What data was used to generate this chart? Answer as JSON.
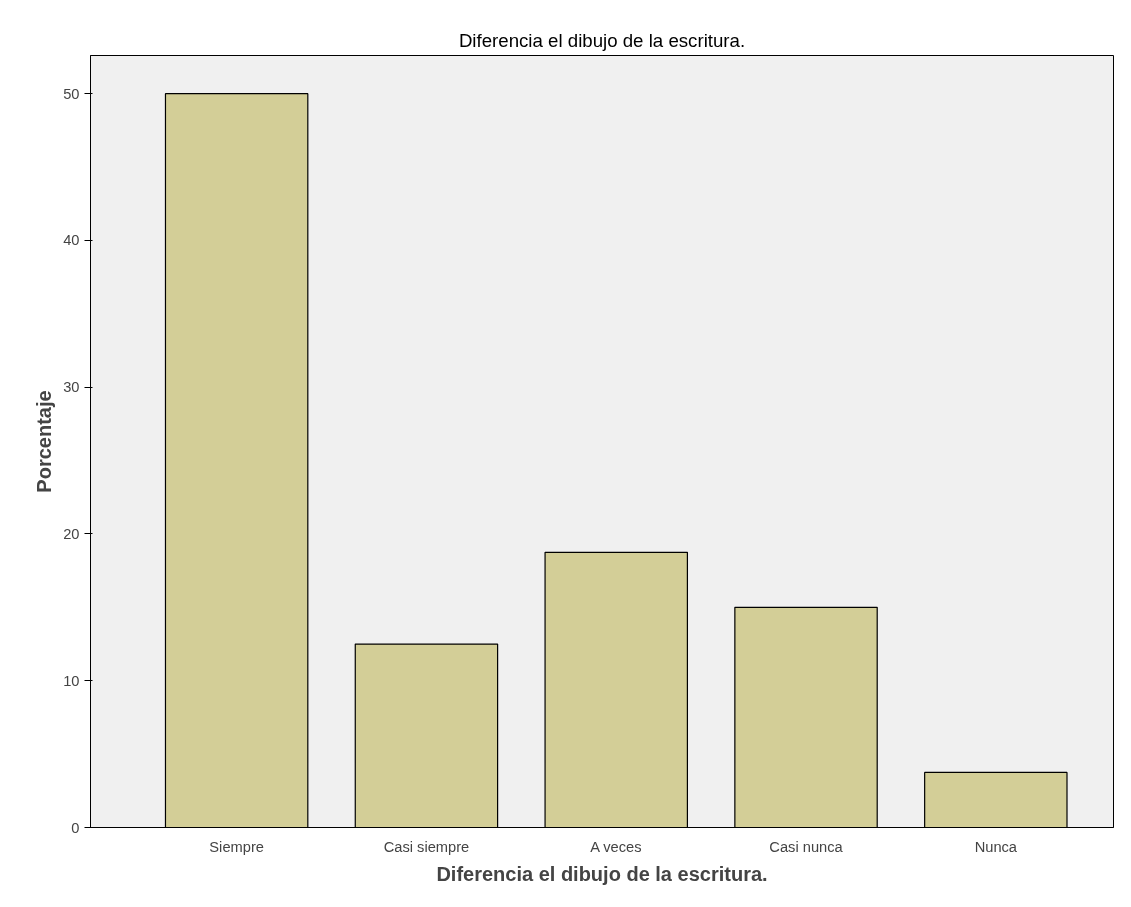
{
  "chart_data": {
    "type": "bar",
    "title": "Diferencia el dibujo de la escritura.",
    "xlabel": "Diferencia el dibujo de la escritura.",
    "ylabel": "Porcentaje",
    "categories": [
      "Siempre",
      "Casi siempre",
      "A veces",
      "Casi nunca",
      "Nunca"
    ],
    "values": [
      50,
      12.5,
      18.75,
      15,
      3.75
    ],
    "color": "#d3ce97",
    "ylim": [
      0,
      52.6
    ],
    "yticks": [
      0,
      10,
      20,
      30,
      40,
      50
    ],
    "grid": false
  }
}
